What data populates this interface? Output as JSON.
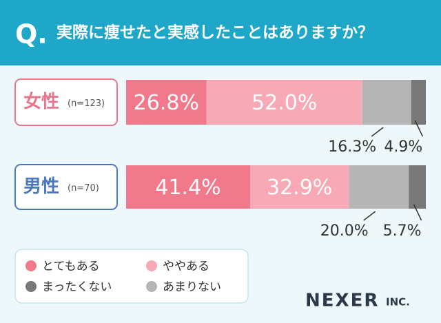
{
  "question_marker": "Q.",
  "brand": {
    "name": "NEXER",
    "suffix": "INC."
  },
  "chart_data": {
    "type": "stacked-bar",
    "title": "実際に痩せたと実感したことはありますか？",
    "categories": [
      "女性",
      "男性"
    ],
    "category_notes": [
      "(n=123)",
      "(n=70)"
    ],
    "category_colors": [
      "#e8768a",
      "#4a78c0"
    ],
    "series": [
      {
        "name": "とてもある",
        "color": "#f07a8c",
        "values": [
          26.8,
          41.4
        ],
        "value_labels": [
          "26.8%",
          "41.4%"
        ]
      },
      {
        "name": "ややある",
        "color": "#f7a9b5",
        "values": [
          52.0,
          32.9
        ],
        "value_labels": [
          "52.0%",
          "32.9%"
        ]
      },
      {
        "name": "あまりない",
        "color": "#b5b5b5",
        "values": [
          16.3,
          20.0
        ],
        "value_labels": [
          "16.3%",
          "20.0%"
        ]
      },
      {
        "name": "まったくない",
        "color": "#787878",
        "values": [
          4.9,
          5.7
        ],
        "value_labels": [
          "4.9%",
          "5.7%"
        ]
      }
    ],
    "legend_order": [
      0,
      1,
      3,
      2
    ]
  }
}
